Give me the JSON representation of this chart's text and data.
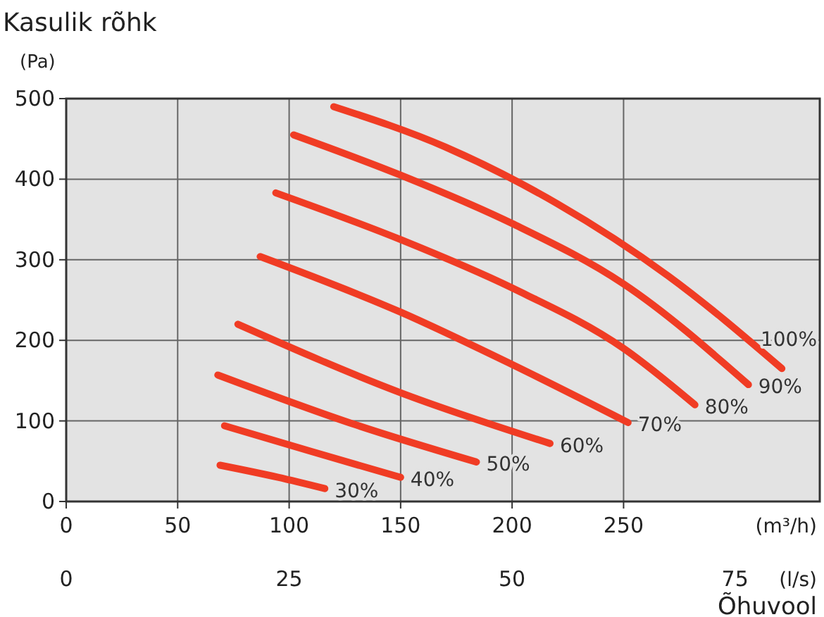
{
  "chart_data": {
    "type": "line",
    "title": "Kasulik rõhk",
    "ylabel": "(Pa)",
    "xlabel": "(m³/h)",
    "x2label": "(l/s)",
    "annotations": [
      "Õhuvool"
    ],
    "xlim": [
      0,
      338
    ],
    "xticks": [
      0,
      50,
      100,
      150,
      200,
      250
    ],
    "ylim": [
      0,
      500
    ],
    "yticks": [
      0,
      100,
      200,
      300,
      400,
      500
    ],
    "x2lim": [
      0,
      84.5
    ],
    "x2ticks": [
      0,
      25,
      50,
      75
    ],
    "grid": true,
    "marker": "none",
    "line_style": "solid",
    "series": [
      {
        "name": "100%",
        "color": "#f03c24",
        "x": [
          120,
          170,
          220,
          270,
          321
        ],
        "values": [
          490,
          440,
          370,
          280,
          165
        ]
      },
      {
        "name": "90%",
        "color": "#f03c24",
        "x": [
          102,
          150,
          200,
          250,
          306
        ],
        "values": [
          455,
          405,
          345,
          270,
          145
        ]
      },
      {
        "name": "80%",
        "color": "#f03c24",
        "x": [
          94,
          150,
          200,
          250,
          282
        ],
        "values": [
          383,
          325,
          265,
          190,
          120
        ]
      },
      {
        "name": "70%",
        "color": "#f03c24",
        "x": [
          87,
          150,
          200,
          252
        ],
        "values": [
          304,
          235,
          170,
          98
        ]
      },
      {
        "name": "60%",
        "color": "#f03c24",
        "x": [
          77,
          150,
          217
        ],
        "values": [
          220,
          135,
          72
        ]
      },
      {
        "name": "50%",
        "color": "#f03c24",
        "x": [
          68,
          130,
          184
        ],
        "values": [
          157,
          95,
          49
        ]
      },
      {
        "name": "40%",
        "color": "#f03c24",
        "x": [
          71,
          110,
          150
        ],
        "values": [
          94,
          62,
          30
        ]
      },
      {
        "name": "30%",
        "color": "#f03c24",
        "x": [
          69,
          95,
          116
        ],
        "values": [
          45,
          30,
          16
        ]
      }
    ]
  }
}
